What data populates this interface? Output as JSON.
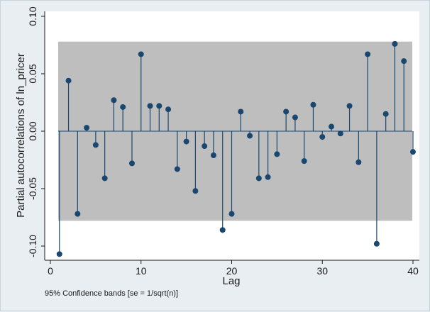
{
  "chart_data": {
    "type": "scatter",
    "style": "stem",
    "xlabel": "Lag",
    "ylabel": "Partial autocorrelations of ln_pricer",
    "note": "95% Confidence bands [se = 1/sqrt(n)]",
    "xlim": [
      0,
      40
    ],
    "ylim": [
      -0.1,
      0.1
    ],
    "x_ticks": [
      0,
      10,
      20,
      30,
      40
    ],
    "x_tick_labels": [
      "0",
      "10",
      "20",
      "30",
      "40"
    ],
    "y_ticks": [
      -0.1,
      -0.05,
      0,
      0.05,
      0.1
    ],
    "y_tick_labels": [
      "-0.10",
      "-0.05",
      "0.00",
      "0.05",
      "0.10"
    ],
    "confidence_band": [
      -0.078,
      0.078
    ],
    "grid": false,
    "colors": {
      "marker": "#1a476f",
      "band": "#bebebe",
      "plot_bg": "#ffffff",
      "page_bg": "#e9eef2"
    },
    "series": [
      {
        "x": [
          1,
          2,
          3,
          4,
          5,
          6,
          7,
          8,
          9,
          10,
          11,
          12,
          13,
          14,
          15,
          16,
          17,
          18,
          19,
          20,
          21,
          22,
          23,
          24,
          25,
          26,
          27,
          28,
          29,
          30,
          31,
          32,
          33,
          34,
          35,
          36,
          37,
          38,
          39,
          40
        ],
        "y": [
          -0.107,
          0.044,
          -0.072,
          0.003,
          -0.012,
          -0.041,
          0.027,
          0.021,
          -0.028,
          0.067,
          0.022,
          0.022,
          0.019,
          -0.033,
          -0.009,
          -0.052,
          -0.013,
          -0.021,
          -0.086,
          -0.072,
          0.017,
          -0.004,
          -0.041,
          -0.04,
          -0.02,
          0.017,
          0.012,
          -0.026,
          0.023,
          -0.005,
          0.004,
          -0.002,
          0.022,
          -0.027,
          0.067,
          -0.098,
          0.015,
          0.076,
          0.061,
          -0.018
        ]
      }
    ]
  }
}
